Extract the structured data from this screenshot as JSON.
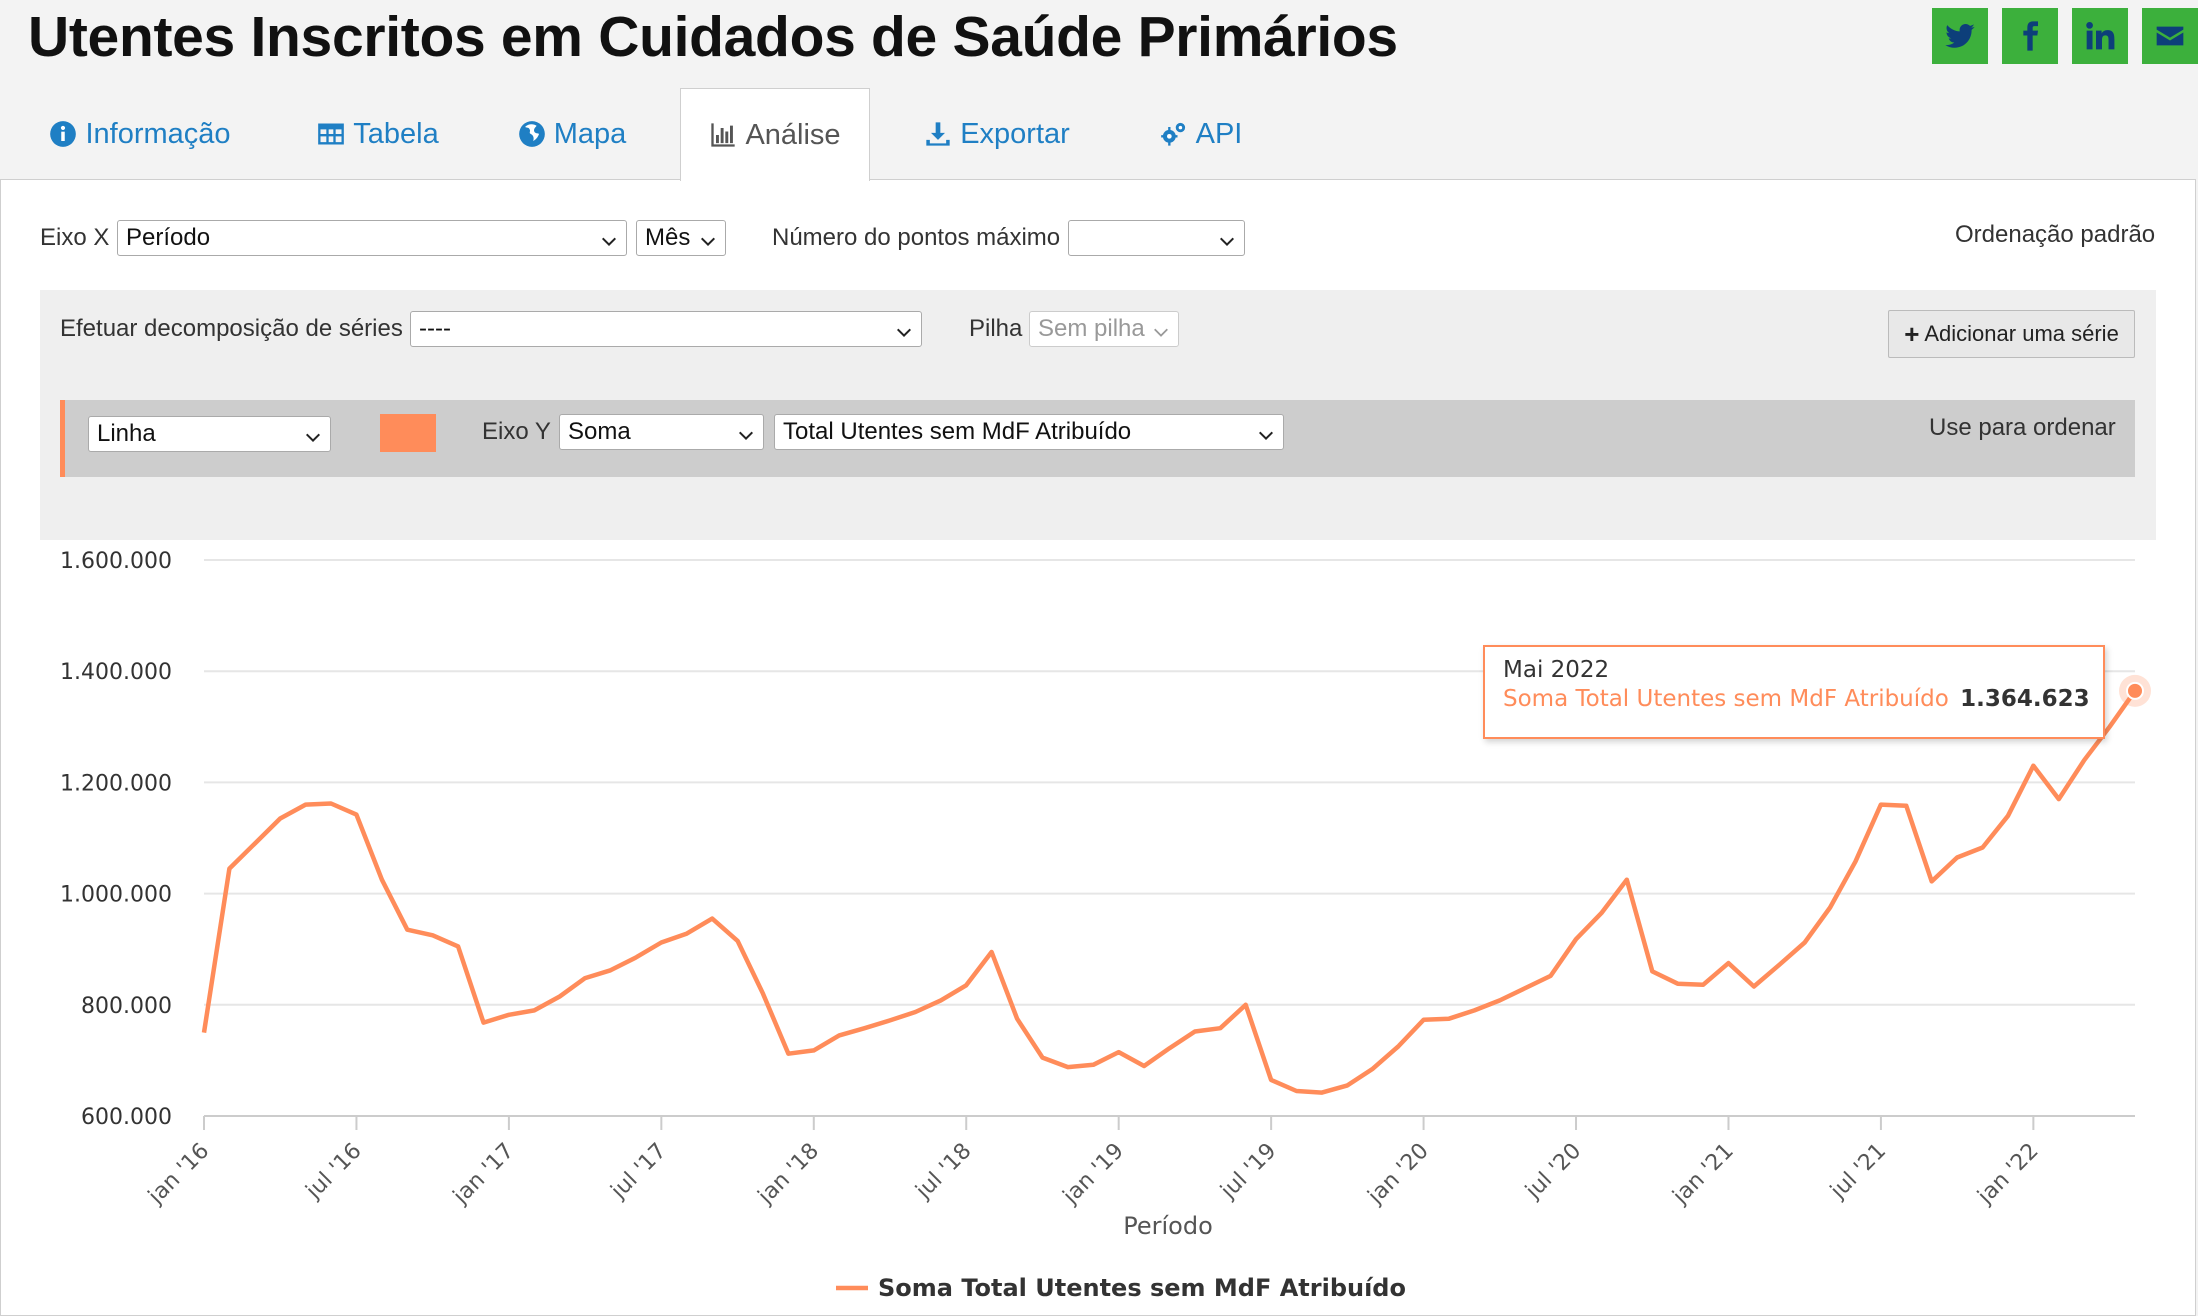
{
  "header": {
    "title": "Utentes Inscritos em Cuidados de Saúde Primários"
  },
  "share": [
    {
      "name": "twitter-icon"
    },
    {
      "name": "facebook-icon"
    },
    {
      "name": "linkedin-icon"
    },
    {
      "name": "email-icon"
    }
  ],
  "colors": {
    "accent": "#ff8c5a",
    "link": "#1f7fc4",
    "share_bg": "#3cb03c"
  },
  "tabs": [
    {
      "label": "Informação",
      "icon": "info-icon"
    },
    {
      "label": "Tabela",
      "icon": "table-icon"
    },
    {
      "label": "Mapa",
      "icon": "globe-icon"
    },
    {
      "label": "Análise",
      "icon": "bar-chart-icon",
      "active": true
    },
    {
      "label": "Exportar",
      "icon": "download-icon"
    },
    {
      "label": "API",
      "icon": "gears-icon"
    }
  ],
  "controls": {
    "x_axis_label": "Eixo X",
    "x_axis_value": "Período",
    "granularity_value": "Mês",
    "max_points_label": "Número do pontos máximo",
    "max_points_value": "",
    "default_order": "Ordenação padrão",
    "breakdown_label": "Efetuar decomposição de séries",
    "breakdown_value": "----",
    "stack_label": "Pilha",
    "stack_value": "Sem pilha",
    "add_series": "Adicionar uma série",
    "series": {
      "type_value": "Linha",
      "y_axis_label": "Eixo Y",
      "aggregation_value": "Soma",
      "field_value": "Total Utentes sem MdF Atribuído",
      "use_for_order": "Use para ordenar"
    }
  },
  "tooltip": {
    "date": "Mai 2022",
    "series_name": "Soma Total Utentes sem MdF Atribuído",
    "value": "1.364.623"
  },
  "chart_data": {
    "type": "line",
    "title": "",
    "xlabel": "Período",
    "ylabel": "",
    "ylim": [
      600000,
      1600000
    ],
    "y_ticks": [
      600000,
      800000,
      1000000,
      1200000,
      1400000,
      1600000
    ],
    "y_tick_labels": [
      "600.000",
      "800.000",
      "1.000.000",
      "1.200.000",
      "1.400.000",
      "1.600.000"
    ],
    "x_tick_labels": [
      "jan '16",
      "jul '16",
      "jan '17",
      "jul '17",
      "jan '18",
      "jul '18",
      "jan '19",
      "jul '19",
      "jan '20",
      "jul '20",
      "jan '21",
      "jul '21",
      "jan '22"
    ],
    "x_start": "2016-01",
    "x_end": "2022-05",
    "legend_position": "bottom-center",
    "series": [
      {
        "name": "Soma Total Utentes sem MdF Atribuído",
        "color": "#ff8c5a",
        "values": [
          750000,
          1045000,
          1090000,
          1135000,
          1160000,
          1162000,
          1142000,
          1025000,
          935000,
          925000,
          905000,
          768000,
          782000,
          790000,
          815000,
          848000,
          862000,
          885000,
          912000,
          928000,
          955000,
          915000,
          820000,
          712000,
          718000,
          745000,
          758000,
          772000,
          787000,
          808000,
          835000,
          895000,
          775000,
          705000,
          688000,
          692000,
          715000,
          690000,
          722000,
          752000,
          758000,
          800000,
          665000,
          645000,
          642000,
          655000,
          685000,
          725000,
          773000,
          775000,
          790000,
          808000,
          830000,
          852000,
          918000,
          965000,
          1025000,
          860000,
          838000,
          836000,
          875000,
          833000,
          872000,
          912000,
          975000,
          1058000,
          1160000,
          1158000,
          1022000,
          1065000,
          1083000,
          1140000,
          1230000,
          1170000,
          1240000,
          1300000,
          1364623
        ]
      }
    ]
  }
}
